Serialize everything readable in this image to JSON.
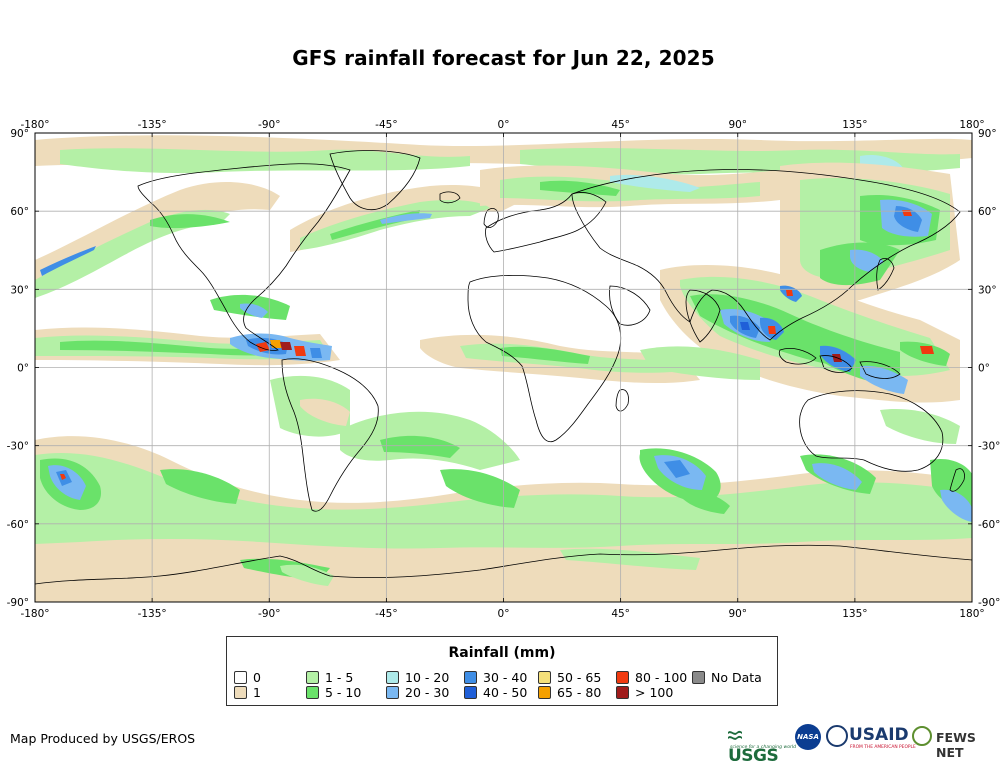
{
  "title": "GFS rainfall forecast for Jun 22, 2025",
  "axes": {
    "x_ticks": [
      {
        "value": -180,
        "label": "-180°"
      },
      {
        "value": -135,
        "label": "-135°"
      },
      {
        "value": -90,
        "label": "-90°"
      },
      {
        "value": -45,
        "label": "-45°"
      },
      {
        "value": 0,
        "label": "0°"
      },
      {
        "value": 45,
        "label": "45°"
      },
      {
        "value": 90,
        "label": "90°"
      },
      {
        "value": 135,
        "label": "135°"
      },
      {
        "value": 180,
        "label": "180°"
      }
    ],
    "y_ticks": [
      {
        "value": 90,
        "label": "90°"
      },
      {
        "value": 60,
        "label": "60°"
      },
      {
        "value": 30,
        "label": "30°"
      },
      {
        "value": 0,
        "label": "0°"
      },
      {
        "value": -30,
        "label": "-30°"
      },
      {
        "value": -60,
        "label": "-60°"
      },
      {
        "value": -90,
        "label": "-90°"
      }
    ],
    "lon_range": [
      -180,
      180
    ],
    "lat_range": [
      -90,
      90
    ],
    "grid": true
  },
  "legend": {
    "title": "Rainfall (mm)",
    "items": [
      {
        "label": "0",
        "color": "#ffffff"
      },
      {
        "label": "1",
        "color": "#eedcbb"
      },
      {
        "label": "1 - 5",
        "color": "#b4f0a6"
      },
      {
        "label": "5 - 10",
        "color": "#6ae26a"
      },
      {
        "label": "10 - 20",
        "color": "#aeeaea"
      },
      {
        "label": "20 - 30",
        "color": "#7ab8f2"
      },
      {
        "label": "30 - 40",
        "color": "#3f8ee6"
      },
      {
        "label": "40 - 50",
        "color": "#1f5fd8"
      },
      {
        "label": "50 - 65",
        "color": "#f5e07a"
      },
      {
        "label": "65 - 80",
        "color": "#f5a000"
      },
      {
        "label": "80 - 100",
        "color": "#f03a10"
      },
      {
        "label": "> 100",
        "color": "#a01c1c"
      },
      {
        "label": "No Data",
        "color": "#8a8a8a"
      }
    ]
  },
  "credit": "Map Produced by USGS/EROS",
  "logos": {
    "usgs": "USGS",
    "usgs_tagline": "science for a changing world",
    "nasa": "NASA",
    "usaid": "USAID",
    "usaid_tagline": "FROM THE AMERICAN PEOPLE",
    "fews": "FEWS NET"
  },
  "colors": {
    "land_outline": "#000000",
    "grid": "#b0b0b0"
  }
}
